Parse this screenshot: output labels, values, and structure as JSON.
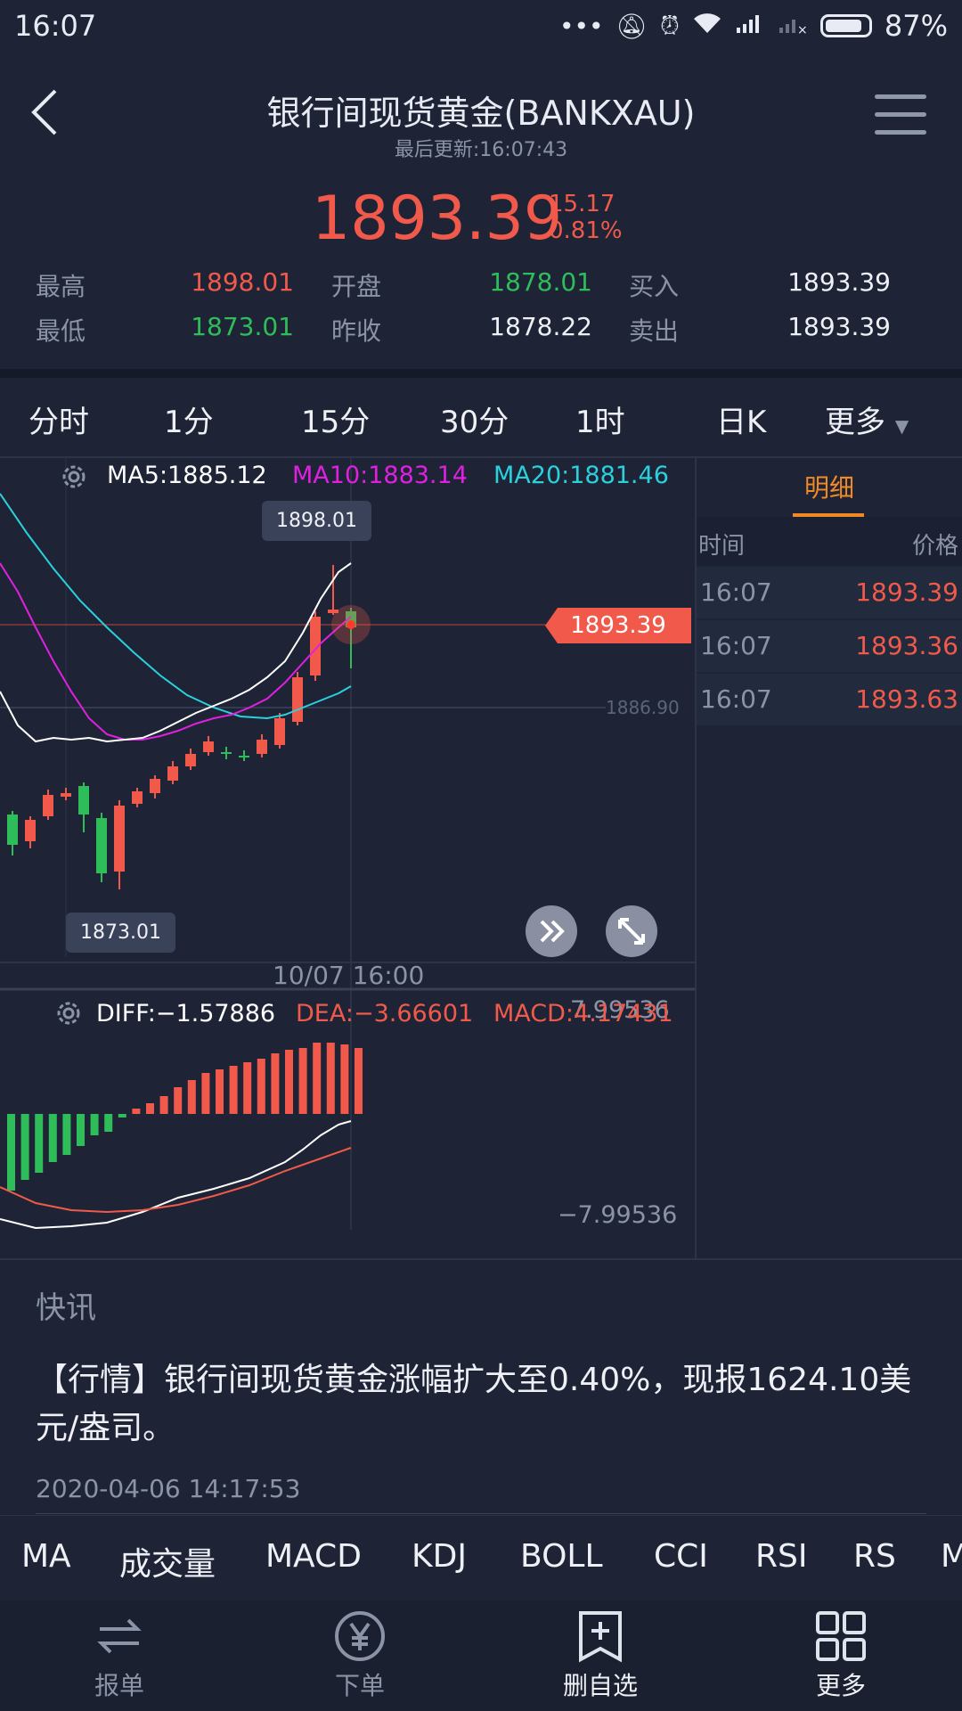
{
  "status_bar": {
    "time": "16:07",
    "battery": "87%",
    "battery_level": 0.87
  },
  "header": {
    "title": "银行间现货黄金(BANKXAU)",
    "subtitle": "最后更新:16:07:43"
  },
  "quote": {
    "price": "1893.39",
    "change": "15.17",
    "change_pct": "0.81%",
    "high_label": "最高",
    "high": "1898.01",
    "low_label": "最低",
    "low": "1873.01",
    "open_label": "开盘",
    "open": "1878.01",
    "prev_close_label": "昨收",
    "prev_close": "1878.22",
    "bid_label": "买入",
    "bid": "1893.39",
    "ask_label": "卖出",
    "ask": "1893.39"
  },
  "period_tabs": [
    {
      "label": "分时",
      "active": false
    },
    {
      "label": "1分",
      "active": false
    },
    {
      "label": "15分",
      "active": false
    },
    {
      "label": "30分",
      "active": true
    },
    {
      "label": "1时",
      "active": false
    },
    {
      "label": "日K",
      "active": false
    },
    {
      "label": "更多",
      "active": false
    }
  ],
  "kline": {
    "ma5": "MA5:1885.12",
    "ma10": "MA10:1883.14",
    "ma20": "MA20:1881.46",
    "high_bubble": "1898.01",
    "low_bubble": "1873.01",
    "last_price_tag": "1893.39",
    "ref_price": "1886.90",
    "time_label": "10/07 16:00",
    "colors": {
      "up": "#f15a4b",
      "down": "#2fbd5a",
      "ma5": "#ffffff",
      "ma10": "#e020e0",
      "ma20": "#2ad1dc"
    }
  },
  "macd": {
    "diff": "DIFF:−1.57886",
    "dea": "DEA:−3.66601",
    "macd": "MACD:4.17431",
    "top_value": "7.99536",
    "bottom_value": "−7.99536"
  },
  "detail": {
    "tab": "明细",
    "col_time": "时间",
    "col_price": "价格",
    "rows": [
      {
        "time": "16:07",
        "price": "1893.39"
      },
      {
        "time": "16:07",
        "price": "1893.36"
      },
      {
        "time": "16:07",
        "price": "1893.63"
      }
    ]
  },
  "news": {
    "title": "快讯",
    "text": "【行情】银行间现货黄金涨幅扩大至0.40%，现报1624.10美元/盎司。",
    "date": "2020-04-06 14:17:53"
  },
  "indicator_tabs": [
    {
      "label": "MA",
      "active": true
    },
    {
      "label": "成交量",
      "active": false
    },
    {
      "label": "MACD",
      "active": true
    },
    {
      "label": "KDJ",
      "active": false
    },
    {
      "label": "BOLL",
      "active": false
    },
    {
      "label": "CCI",
      "active": false
    },
    {
      "label": "RSI",
      "active": false
    },
    {
      "label": "RS",
      "active": false
    },
    {
      "label": "M",
      "active": false
    }
  ],
  "bottom_nav": [
    {
      "label": "报单",
      "icon": "exchange-arrows-icon"
    },
    {
      "label": "下单",
      "icon": "yen-circle-icon"
    },
    {
      "label": "删自选",
      "icon": "bookmark-plus-icon"
    },
    {
      "label": "更多",
      "icon": "grid-icon"
    }
  ]
}
